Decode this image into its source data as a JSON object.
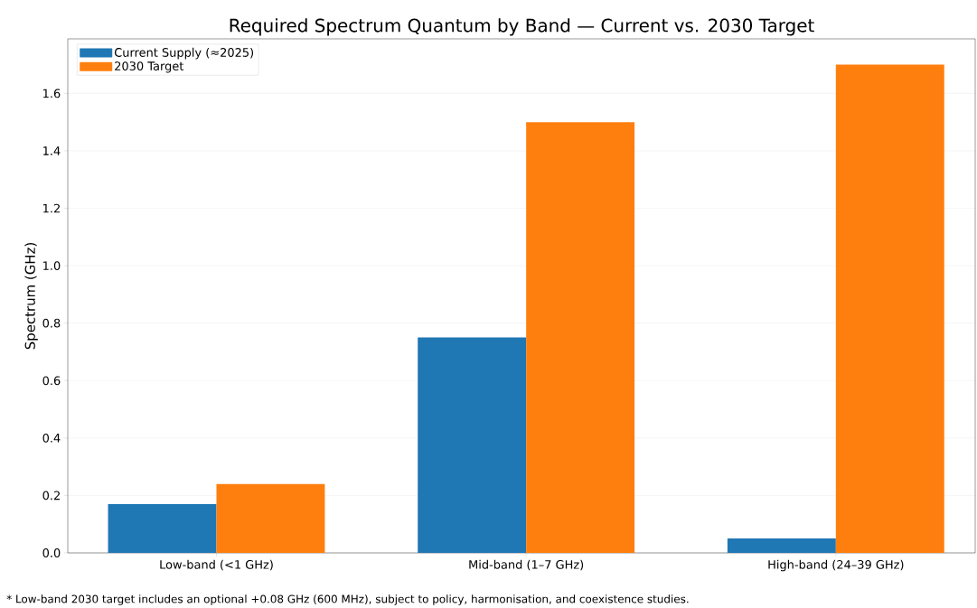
{
  "chart_data": {
    "type": "bar",
    "title": "Required Spectrum Quantum by Band — Current vs. 2030 Target",
    "ylabel": "Spectrum (GHz)",
    "categories": [
      "Low-band (<1 GHz)",
      "Mid-band (1–7 GHz)",
      "High-band (24–39 GHz)"
    ],
    "series": [
      {
        "name": "Current Supply (≈2025)",
        "color": "#1f77b4",
        "values": [
          0.17,
          0.75,
          0.05
        ]
      },
      {
        "name": "2030 Target",
        "color": "#ff7f0e",
        "values": [
          0.24,
          1.5,
          1.7
        ]
      }
    ],
    "ylim": [
      0,
      1.79
    ],
    "yticks": [
      {
        "value": 0,
        "label": "0.0"
      },
      {
        "value": 0.2,
        "label": "0.2"
      },
      {
        "value": 0.4,
        "label": "0.4"
      },
      {
        "value": 0.6,
        "label": "0.6"
      },
      {
        "value": 0.8,
        "label": "0.8"
      },
      {
        "value": 1.0,
        "label": "1.0"
      },
      {
        "value": 1.2,
        "label": "1.2"
      },
      {
        "value": 1.4,
        "label": "1.4"
      },
      {
        "value": 1.6,
        "label": "1.6"
      }
    ],
    "grid": "y",
    "legend": "top left",
    "annotations": [
      "* Low-band 2030 target includes an optional +0.08 GHz (600 MHz), subject to policy, harmonisation, and coexistence studies."
    ]
  }
}
